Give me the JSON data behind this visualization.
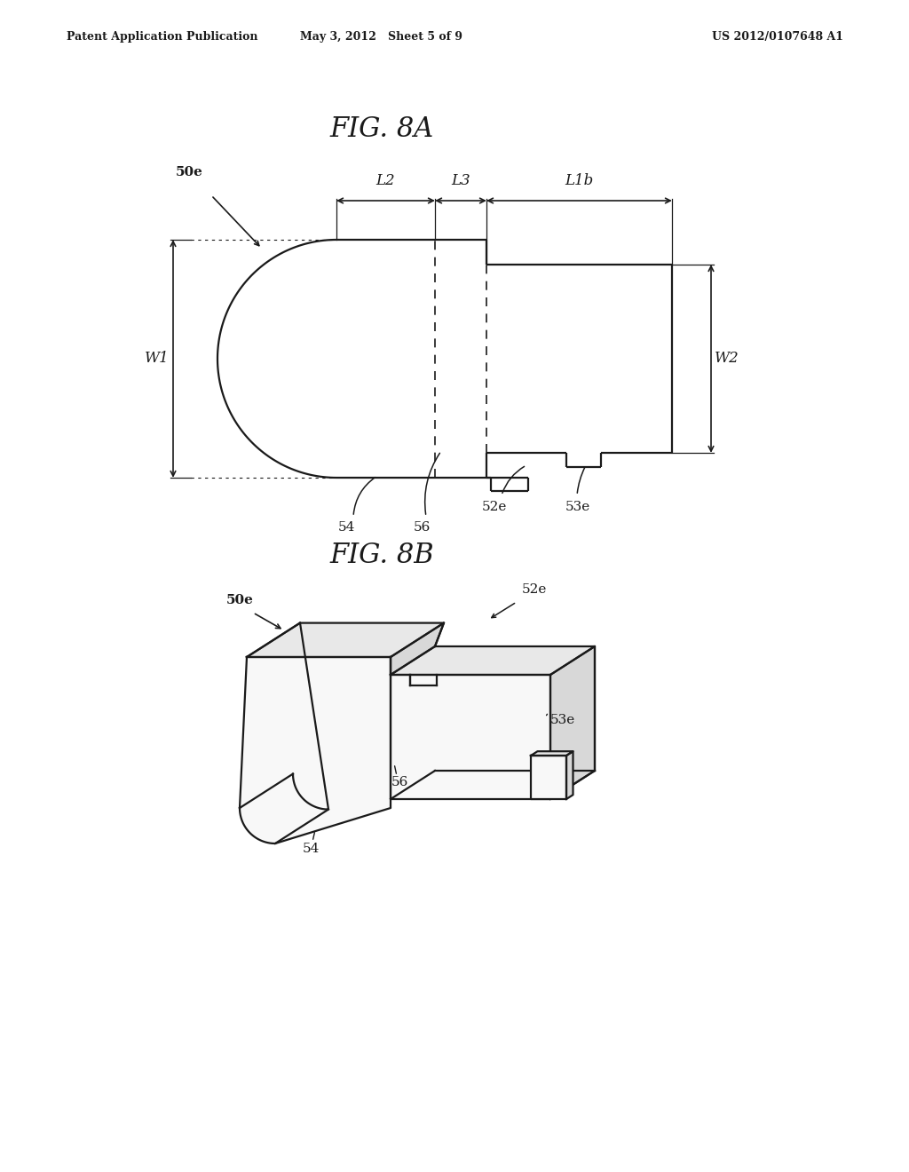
{
  "bg_color": "#ffffff",
  "line_color": "#1a1a1a",
  "text_color": "#1a1a1a",
  "header_left": "Patent Application Publication",
  "header_center": "May 3, 2012   Sheet 5 of 9",
  "header_right": "US 2012/0107648 A1",
  "fig8a_title": "FIG. 8A",
  "fig8b_title": "FIG. 8B"
}
